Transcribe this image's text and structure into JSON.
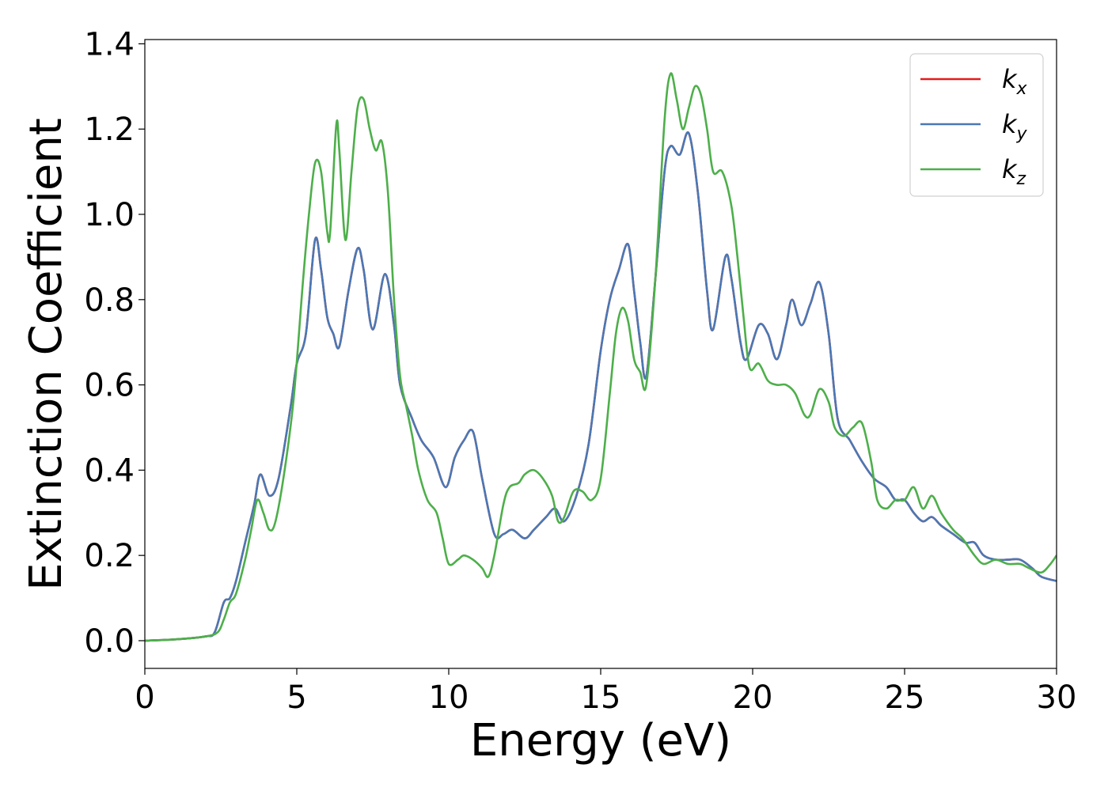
{
  "chart_data": {
    "type": "line",
    "xlabel": "Energy (eV)",
    "ylabel": "Extinction Coefficient",
    "xlim": [
      0,
      30
    ],
    "ylim": [
      -0.065,
      1.41
    ],
    "x_ticks": [
      "0",
      "5",
      "10",
      "15",
      "20",
      "25",
      "30"
    ],
    "y_ticks": [
      "0.0",
      "0.2",
      "0.4",
      "0.6",
      "0.8",
      "1.0",
      "1.2",
      "1.4"
    ],
    "grid": false,
    "legend_position": "top-right",
    "series": [
      {
        "name": "k_x",
        "label_base": "k",
        "label_sub": "x",
        "color": "#e41a1c",
        "points": [
          [
            0,
            0
          ],
          [
            1,
            0.003
          ],
          [
            2,
            0.01
          ],
          [
            2.3,
            0.02
          ],
          [
            2.6,
            0.09
          ],
          [
            2.8,
            0.1
          ],
          [
            3,
            0.14
          ],
          [
            3.3,
            0.23
          ],
          [
            3.6,
            0.32
          ],
          [
            3.8,
            0.39
          ],
          [
            4.1,
            0.34
          ],
          [
            4.4,
            0.38
          ],
          [
            4.8,
            0.55
          ],
          [
            5,
            0.65
          ],
          [
            5.3,
            0.72
          ],
          [
            5.6,
            0.94
          ],
          [
            5.8,
            0.87
          ],
          [
            6,
            0.76
          ],
          [
            6.2,
            0.72
          ],
          [
            6.4,
            0.69
          ],
          [
            6.7,
            0.82
          ],
          [
            7,
            0.92
          ],
          [
            7.2,
            0.87
          ],
          [
            7.5,
            0.73
          ],
          [
            7.9,
            0.86
          ],
          [
            8.2,
            0.74
          ],
          [
            8.4,
            0.6
          ],
          [
            8.8,
            0.52
          ],
          [
            9.1,
            0.47
          ],
          [
            9.5,
            0.43
          ],
          [
            9.9,
            0.36
          ],
          [
            10.2,
            0.43
          ],
          [
            10.5,
            0.47
          ],
          [
            10.8,
            0.49
          ],
          [
            11.1,
            0.38
          ],
          [
            11.5,
            0.25
          ],
          [
            11.8,
            0.25
          ],
          [
            12.1,
            0.26
          ],
          [
            12.5,
            0.24
          ],
          [
            12.8,
            0.26
          ],
          [
            13.2,
            0.29
          ],
          [
            13.5,
            0.31
          ],
          [
            13.8,
            0.28
          ],
          [
            14.2,
            0.34
          ],
          [
            14.6,
            0.46
          ],
          [
            15,
            0.68
          ],
          [
            15.3,
            0.8
          ],
          [
            15.6,
            0.87
          ],
          [
            15.9,
            0.93
          ],
          [
            16.1,
            0.82
          ],
          [
            16.3,
            0.7
          ],
          [
            16.5,
            0.62
          ],
          [
            16.8,
            0.85
          ],
          [
            17.1,
            1.1
          ],
          [
            17.3,
            1.16
          ],
          [
            17.6,
            1.14
          ],
          [
            17.9,
            1.19
          ],
          [
            18.2,
            1.05
          ],
          [
            18.5,
            0.82
          ],
          [
            18.7,
            0.73
          ],
          [
            19.1,
            0.9
          ],
          [
            19.3,
            0.85
          ],
          [
            19.6,
            0.7
          ],
          [
            19.8,
            0.66
          ],
          [
            20.2,
            0.74
          ],
          [
            20.5,
            0.72
          ],
          [
            20.8,
            0.66
          ],
          [
            21.1,
            0.74
          ],
          [
            21.3,
            0.8
          ],
          [
            21.6,
            0.74
          ],
          [
            21.9,
            0.79
          ],
          [
            22.2,
            0.84
          ],
          [
            22.5,
            0.72
          ],
          [
            22.8,
            0.52
          ],
          [
            23.2,
            0.47
          ],
          [
            23.6,
            0.42
          ],
          [
            24,
            0.38
          ],
          [
            24.4,
            0.36
          ],
          [
            24.7,
            0.33
          ],
          [
            25,
            0.33
          ],
          [
            25.3,
            0.3
          ],
          [
            25.6,
            0.28
          ],
          [
            25.9,
            0.29
          ],
          [
            26.2,
            0.27
          ],
          [
            26.6,
            0.25
          ],
          [
            27,
            0.23
          ],
          [
            27.3,
            0.23
          ],
          [
            27.6,
            0.2
          ],
          [
            28,
            0.19
          ],
          [
            28.4,
            0.19
          ],
          [
            28.8,
            0.19
          ],
          [
            29.2,
            0.17
          ],
          [
            29.5,
            0.15
          ],
          [
            30,
            0.14
          ]
        ]
      },
      {
        "name": "k_y",
        "label_base": "k",
        "label_sub": "y",
        "color": "#4a78b4",
        "points": [
          [
            0,
            0
          ],
          [
            1,
            0.003
          ],
          [
            2,
            0.01
          ],
          [
            2.3,
            0.02
          ],
          [
            2.6,
            0.09
          ],
          [
            2.8,
            0.1
          ],
          [
            3,
            0.14
          ],
          [
            3.3,
            0.23
          ],
          [
            3.6,
            0.32
          ],
          [
            3.8,
            0.39
          ],
          [
            4.1,
            0.34
          ],
          [
            4.4,
            0.38
          ],
          [
            4.8,
            0.55
          ],
          [
            5,
            0.65
          ],
          [
            5.3,
            0.72
          ],
          [
            5.6,
            0.94
          ],
          [
            5.8,
            0.87
          ],
          [
            6,
            0.76
          ],
          [
            6.2,
            0.72
          ],
          [
            6.4,
            0.69
          ],
          [
            6.7,
            0.82
          ],
          [
            7,
            0.92
          ],
          [
            7.2,
            0.87
          ],
          [
            7.5,
            0.73
          ],
          [
            7.9,
            0.86
          ],
          [
            8.2,
            0.74
          ],
          [
            8.4,
            0.6
          ],
          [
            8.8,
            0.52
          ],
          [
            9.1,
            0.47
          ],
          [
            9.5,
            0.43
          ],
          [
            9.9,
            0.36
          ],
          [
            10.2,
            0.43
          ],
          [
            10.5,
            0.47
          ],
          [
            10.8,
            0.49
          ],
          [
            11.1,
            0.38
          ],
          [
            11.5,
            0.25
          ],
          [
            11.8,
            0.25
          ],
          [
            12.1,
            0.26
          ],
          [
            12.5,
            0.24
          ],
          [
            12.8,
            0.26
          ],
          [
            13.2,
            0.29
          ],
          [
            13.5,
            0.31
          ],
          [
            13.8,
            0.28
          ],
          [
            14.2,
            0.34
          ],
          [
            14.6,
            0.46
          ],
          [
            15,
            0.68
          ],
          [
            15.3,
            0.8
          ],
          [
            15.6,
            0.87
          ],
          [
            15.9,
            0.93
          ],
          [
            16.1,
            0.82
          ],
          [
            16.3,
            0.7
          ],
          [
            16.5,
            0.62
          ],
          [
            16.8,
            0.85
          ],
          [
            17.1,
            1.1
          ],
          [
            17.3,
            1.16
          ],
          [
            17.6,
            1.14
          ],
          [
            17.9,
            1.19
          ],
          [
            18.2,
            1.05
          ],
          [
            18.5,
            0.82
          ],
          [
            18.7,
            0.73
          ],
          [
            19.1,
            0.9
          ],
          [
            19.3,
            0.85
          ],
          [
            19.6,
            0.7
          ],
          [
            19.8,
            0.66
          ],
          [
            20.2,
            0.74
          ],
          [
            20.5,
            0.72
          ],
          [
            20.8,
            0.66
          ],
          [
            21.1,
            0.74
          ],
          [
            21.3,
            0.8
          ],
          [
            21.6,
            0.74
          ],
          [
            21.9,
            0.79
          ],
          [
            22.2,
            0.84
          ],
          [
            22.5,
            0.72
          ],
          [
            22.8,
            0.52
          ],
          [
            23.2,
            0.47
          ],
          [
            23.6,
            0.42
          ],
          [
            24,
            0.38
          ],
          [
            24.4,
            0.36
          ],
          [
            24.7,
            0.33
          ],
          [
            25,
            0.33
          ],
          [
            25.3,
            0.3
          ],
          [
            25.6,
            0.28
          ],
          [
            25.9,
            0.29
          ],
          [
            26.2,
            0.27
          ],
          [
            26.6,
            0.25
          ],
          [
            27,
            0.23
          ],
          [
            27.3,
            0.23
          ],
          [
            27.6,
            0.2
          ],
          [
            28,
            0.19
          ],
          [
            28.4,
            0.19
          ],
          [
            28.8,
            0.19
          ],
          [
            29.2,
            0.17
          ],
          [
            29.5,
            0.15
          ],
          [
            30,
            0.14
          ]
        ]
      },
      {
        "name": "k_z",
        "label_base": "k",
        "label_sub": "z",
        "color": "#4daf4a",
        "points": [
          [
            0,
            0
          ],
          [
            1,
            0.003
          ],
          [
            2,
            0.01
          ],
          [
            2.4,
            0.02
          ],
          [
            2.6,
            0.05
          ],
          [
            2.8,
            0.09
          ],
          [
            3,
            0.11
          ],
          [
            3.3,
            0.19
          ],
          [
            3.5,
            0.26
          ],
          [
            3.7,
            0.33
          ],
          [
            3.9,
            0.3
          ],
          [
            4.1,
            0.26
          ],
          [
            4.3,
            0.28
          ],
          [
            4.6,
            0.4
          ],
          [
            4.9,
            0.57
          ],
          [
            5.2,
            0.84
          ],
          [
            5.4,
            1.0
          ],
          [
            5.6,
            1.12
          ],
          [
            5.8,
            1.1
          ],
          [
            6,
            0.96
          ],
          [
            6.1,
            0.96
          ],
          [
            6.3,
            1.21
          ],
          [
            6.4,
            1.15
          ],
          [
            6.6,
            0.94
          ],
          [
            6.8,
            1.1
          ],
          [
            7,
            1.25
          ],
          [
            7.2,
            1.27
          ],
          [
            7.4,
            1.2
          ],
          [
            7.6,
            1.15
          ],
          [
            7.8,
            1.17
          ],
          [
            8,
            1.05
          ],
          [
            8.2,
            0.8
          ],
          [
            8.4,
            0.62
          ],
          [
            8.6,
            0.55
          ],
          [
            8.8,
            0.48
          ],
          [
            9,
            0.4
          ],
          [
            9.3,
            0.33
          ],
          [
            9.6,
            0.3
          ],
          [
            9.8,
            0.24
          ],
          [
            10,
            0.18
          ],
          [
            10.3,
            0.19
          ],
          [
            10.5,
            0.2
          ],
          [
            10.8,
            0.19
          ],
          [
            11.1,
            0.17
          ],
          [
            11.3,
            0.15
          ],
          [
            11.5,
            0.2
          ],
          [
            11.8,
            0.32
          ],
          [
            12,
            0.36
          ],
          [
            12.3,
            0.37
          ],
          [
            12.5,
            0.39
          ],
          [
            12.8,
            0.4
          ],
          [
            13.1,
            0.38
          ],
          [
            13.4,
            0.34
          ],
          [
            13.6,
            0.28
          ],
          [
            13.8,
            0.29
          ],
          [
            14.1,
            0.35
          ],
          [
            14.4,
            0.35
          ],
          [
            14.7,
            0.33
          ],
          [
            15,
            0.38
          ],
          [
            15.3,
            0.58
          ],
          [
            15.5,
            0.72
          ],
          [
            15.7,
            0.78
          ],
          [
            15.9,
            0.75
          ],
          [
            16.1,
            0.66
          ],
          [
            16.3,
            0.63
          ],
          [
            16.5,
            0.6
          ],
          [
            16.8,
            0.85
          ],
          [
            17.1,
            1.22
          ],
          [
            17.3,
            1.33
          ],
          [
            17.5,
            1.27
          ],
          [
            17.7,
            1.2
          ],
          [
            17.9,
            1.25
          ],
          [
            18.1,
            1.3
          ],
          [
            18.3,
            1.28
          ],
          [
            18.5,
            1.2
          ],
          [
            18.7,
            1.1
          ],
          [
            19,
            1.1
          ],
          [
            19.3,
            1.02
          ],
          [
            19.5,
            0.9
          ],
          [
            19.7,
            0.76
          ],
          [
            19.9,
            0.64
          ],
          [
            20.2,
            0.65
          ],
          [
            20.5,
            0.61
          ],
          [
            20.8,
            0.6
          ],
          [
            21.1,
            0.6
          ],
          [
            21.4,
            0.58
          ],
          [
            21.7,
            0.53
          ],
          [
            21.9,
            0.53
          ],
          [
            22.2,
            0.59
          ],
          [
            22.5,
            0.56
          ],
          [
            22.7,
            0.5
          ],
          [
            23,
            0.48
          ],
          [
            23.3,
            0.5
          ],
          [
            23.6,
            0.51
          ],
          [
            23.9,
            0.42
          ],
          [
            24.1,
            0.33
          ],
          [
            24.4,
            0.31
          ],
          [
            24.7,
            0.33
          ],
          [
            25,
            0.33
          ],
          [
            25.3,
            0.36
          ],
          [
            25.6,
            0.31
          ],
          [
            25.9,
            0.34
          ],
          [
            26.2,
            0.3
          ],
          [
            26.6,
            0.26
          ],
          [
            26.9,
            0.24
          ],
          [
            27.3,
            0.2
          ],
          [
            27.6,
            0.18
          ],
          [
            28,
            0.19
          ],
          [
            28.4,
            0.18
          ],
          [
            28.8,
            0.18
          ],
          [
            29.1,
            0.17
          ],
          [
            29.5,
            0.16
          ],
          [
            29.8,
            0.18
          ],
          [
            30,
            0.2
          ]
        ]
      }
    ]
  }
}
